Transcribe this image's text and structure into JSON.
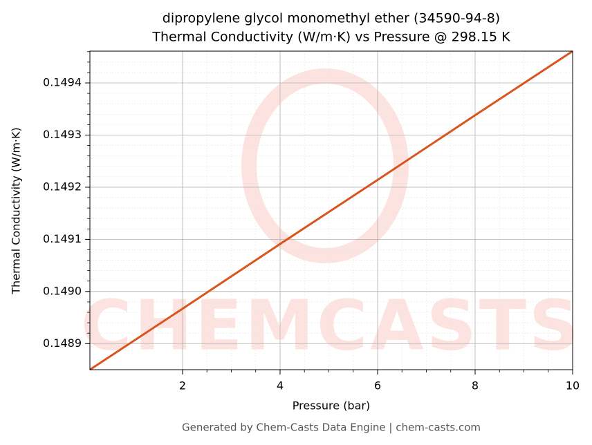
{
  "chart_data": {
    "type": "line",
    "title": [
      "dipropylene glycol monomethyl ether (34590-94-8)",
      "Thermal Conductivity (W/m·K) vs Pressure @ 298.15 K"
    ],
    "xlabel": "Pressure (bar)",
    "ylabel": "Thermal Conductivity (W/m·K)",
    "footer": "Generated by Chem-Casts Data Engine | chem-casts.com",
    "watermark": "CHEMCASTS",
    "x": [
      0.1,
      2,
      4,
      6,
      8,
      10
    ],
    "series": [
      {
        "name": "Thermal Conductivity",
        "color": "#d9541e",
        "values": [
          0.14885,
          0.148967,
          0.149091,
          0.149214,
          0.149338,
          0.149461
        ]
      }
    ],
    "xlim": [
      0.1,
      10
    ],
    "xticks": [
      2,
      4,
      6,
      8,
      10
    ],
    "ylim": [
      0.14885,
      0.149461
    ],
    "yticks": [
      0.1489,
      {
        "value": 0.149,
        "label": "0.1490"
      },
      0.1491,
      0.1492,
      0.1493,
      0.1494
    ],
    "grid": true
  }
}
